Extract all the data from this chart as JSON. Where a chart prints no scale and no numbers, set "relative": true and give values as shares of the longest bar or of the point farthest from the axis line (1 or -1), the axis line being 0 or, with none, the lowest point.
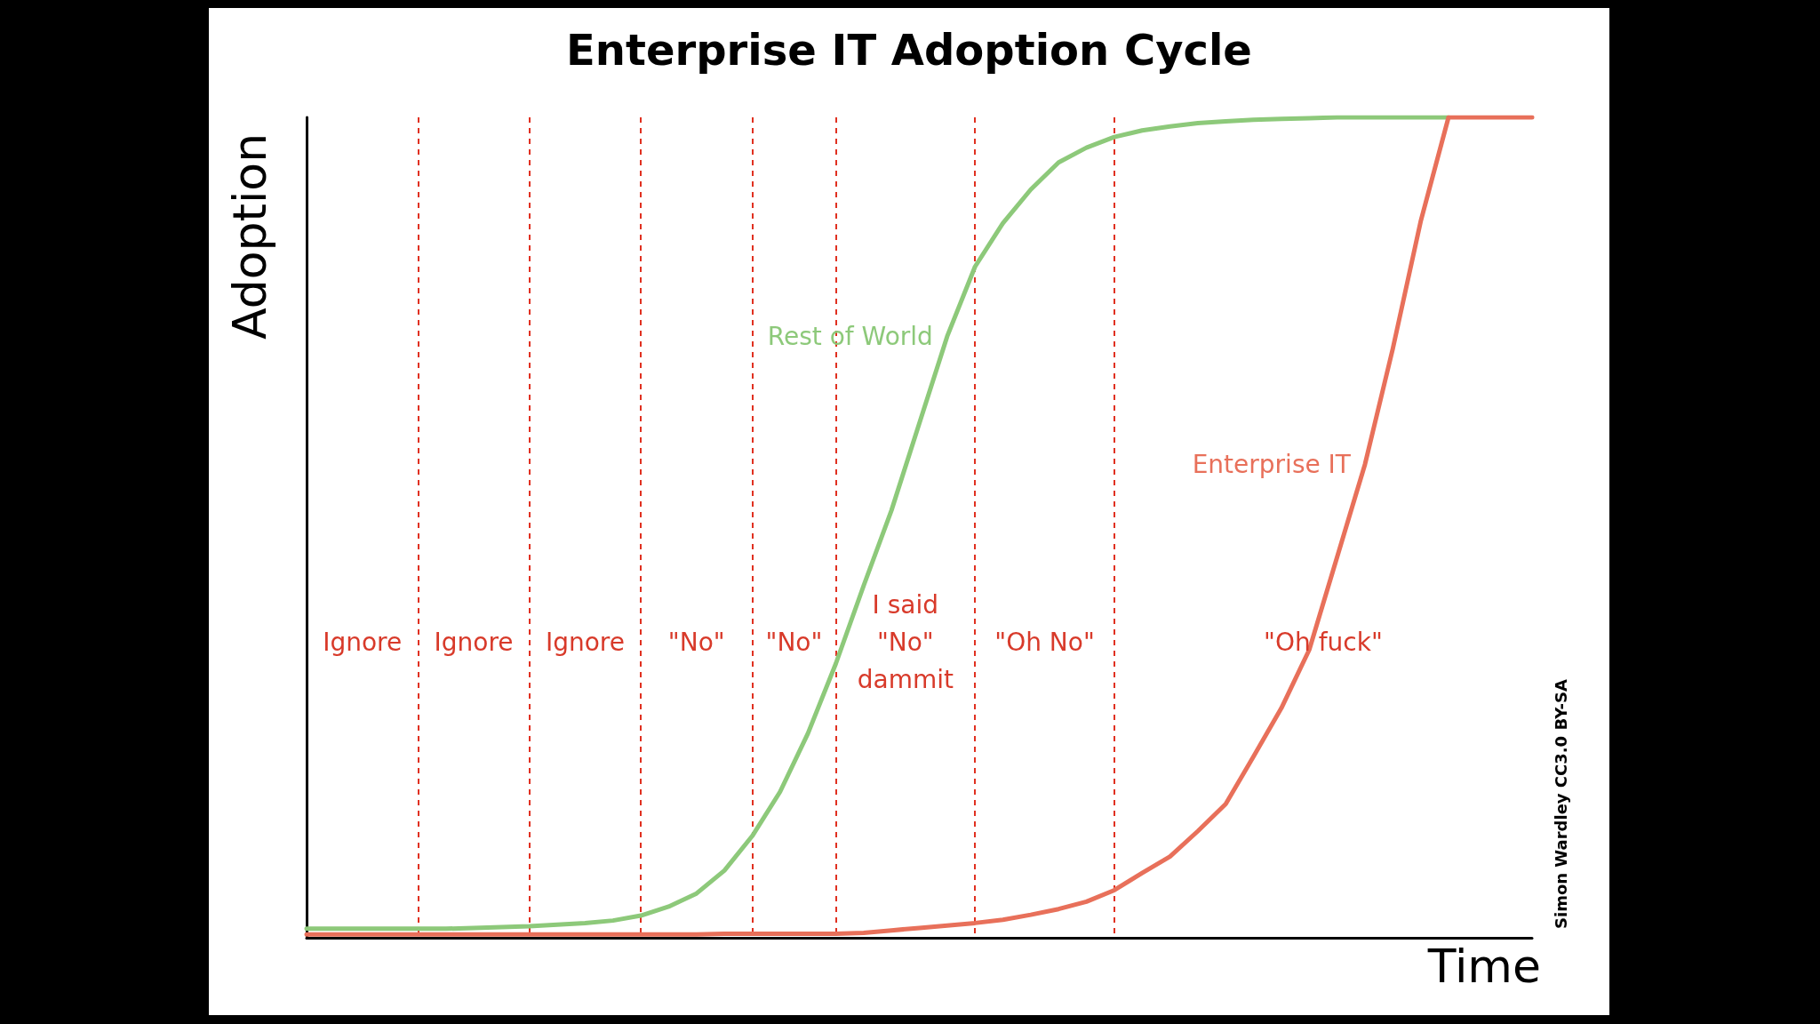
{
  "chart_data": {
    "type": "line",
    "title": "Enterprise IT Adoption Cycle",
    "xlabel": "Time",
    "ylabel": "Adoption",
    "relative": true,
    "legend": false,
    "grid": "x",
    "marker": "none",
    "line_style": "solid",
    "categories": [
      null,
      null,
      null,
      null,
      null,
      null,
      null,
      null,
      null,
      null,
      null,
      null,
      null,
      null,
      null,
      null,
      null,
      null,
      null,
      null,
      null,
      null,
      null,
      null,
      null,
      null,
      null,
      null,
      null,
      null,
      null,
      null,
      null,
      null,
      null,
      null,
      null,
      null,
      null,
      null,
      null,
      null,
      null,
      null,
      null
    ],
    "series": [
      {
        "name": "Rest of World",
        "color": "#8dc97a",
        "values": [
          0.011,
          0.011,
          0.011,
          0.011,
          0.011,
          0.011,
          0.012,
          0.013,
          0.014,
          0.016,
          0.018,
          0.021,
          0.027,
          0.038,
          0.054,
          0.082,
          0.124,
          0.178,
          0.249,
          0.334,
          0.429,
          0.521,
          0.627,
          0.733,
          0.818,
          0.871,
          0.912,
          0.945,
          0.963,
          0.976,
          0.984,
          0.989,
          0.993,
          0.995,
          0.997,
          0.998,
          0.999,
          1,
          1,
          1,
          1,
          1,
          null,
          null,
          null
        ]
      },
      {
        "name": "Enterprise IT",
        "color": "#e8705a",
        "values": [
          0.004,
          0.004,
          0.004,
          0.004,
          0.004,
          0.004,
          0.004,
          0.004,
          0.004,
          0.004,
          0.004,
          0.004,
          0.004,
          0.004,
          0.004,
          0.005,
          0.005,
          0.005,
          0.005,
          0.005,
          0.006,
          0.009,
          0.012,
          0.015,
          0.018,
          0.022,
          0.028,
          0.035,
          0.044,
          0.058,
          0.079,
          0.099,
          0.13,
          0.163,
          0.221,
          0.28,
          0.351,
          0.464,
          0.577,
          0.718,
          0.873,
          1,
          1,
          1,
          1
        ]
      }
    ],
    "annotations": [
      "Ignore",
      "Ignore",
      "Ignore",
      "\"No\"",
      "\"No\"",
      "I said\n\"No\"\ndammit",
      "\"Oh No\"",
      "\"Oh fuck\"",
      "Simon Wardley CC3.0 BY-SA"
    ]
  }
}
